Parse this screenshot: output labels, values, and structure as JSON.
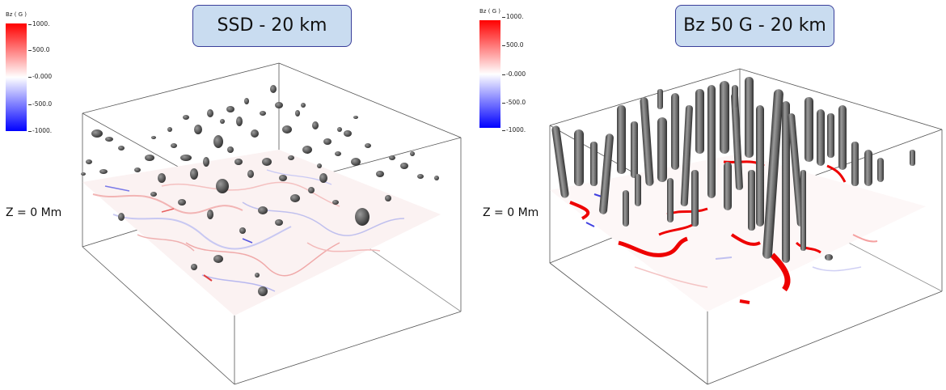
{
  "panels": [
    {
      "title": "SSD - 20 km",
      "colorbar": {
        "title": "Bz ( G )",
        "ticks": [
          "1000.",
          "500.0",
          "-0.000",
          "-500.0",
          "-1000."
        ]
      },
      "z_label": "Z = 0 Mm"
    },
    {
      "title": "Bz 50 G - 20 km",
      "colorbar": {
        "title": "Bz ( G )",
        "ticks": [
          "1000.",
          "500.0",
          "-0.000",
          "-500.0",
          "-1000."
        ]
      },
      "z_label": "Z = 0 Mm"
    }
  ],
  "colors": {
    "positive": "#ff0000",
    "neutral": "#ffffff",
    "negative": "#0000ff",
    "isosurface": "#6e6e6e",
    "title_box": "#c9dcf0",
    "title_border": "#3a3f9a"
  }
}
